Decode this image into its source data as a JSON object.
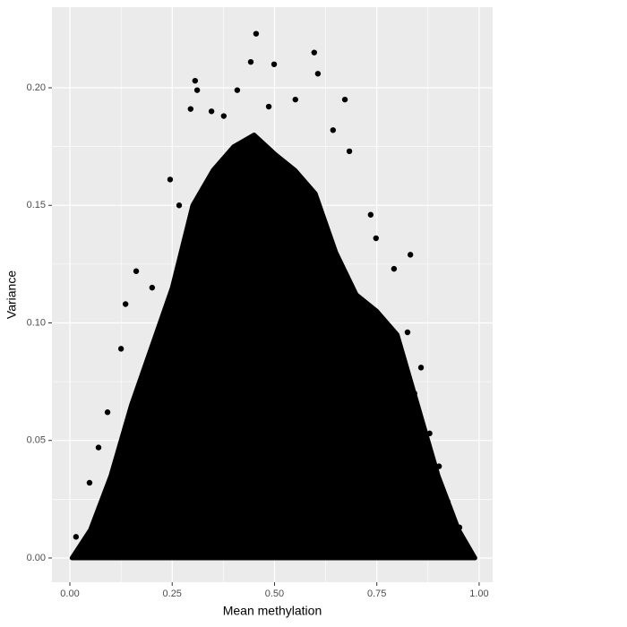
{
  "chart_data": {
    "type": "scatter",
    "x_label": "Mean methylation",
    "y_label": "Variance",
    "xlim": [
      -0.0438,
      1.033
    ],
    "ylim": [
      -0.0103,
      0.2343
    ],
    "xticks": [
      {
        "value": 0,
        "label": "0.00"
      },
      {
        "value": 0.25,
        "label": "0.25"
      },
      {
        "value": 0.5,
        "label": "0.50"
      },
      {
        "value": 0.75,
        "label": "0.75"
      },
      {
        "value": 1,
        "label": "1.00"
      }
    ],
    "yticks": [
      {
        "value": 0,
        "label": "0.00"
      },
      {
        "value": 0.05,
        "label": "0.05"
      },
      {
        "value": 0.1,
        "label": "0.10"
      },
      {
        "value": 0.15,
        "label": "0.15"
      },
      {
        "value": 0.2,
        "label": "0.20"
      }
    ],
    "x_minor_grid": [
      0.125,
      0.375,
      0.625,
      0.875
    ],
    "y_minor_grid": [
      0.025,
      0.075,
      0.125,
      0.175
    ],
    "grid": true,
    "color": "#000000",
    "x": [
      0.455,
      0.597,
      0.442,
      0.499,
      0.306,
      0.311,
      0.606,
      0.672,
      0.346,
      0.295,
      0.735,
      0.832,
      0.162,
      0.136,
      0.858,
      0.879,
      0.923,
      0.952,
      0.092,
      0.048,
      0.015,
      0.683,
      0.643,
      0.245,
      0.201,
      0.792,
      0.376,
      0.551,
      0.409,
      0.486,
      0.267,
      0.748,
      0.825,
      0.842,
      0.125,
      0.07,
      0.902
    ],
    "y": [
      0.223,
      0.215,
      0.211,
      0.21,
      0.203,
      0.199,
      0.206,
      0.195,
      0.19,
      0.191,
      0.146,
      0.129,
      0.122,
      0.108,
      0.081,
      0.053,
      0.024,
      0.013,
      0.062,
      0.032,
      0.009,
      0.173,
      0.182,
      0.161,
      0.115,
      0.123,
      0.188,
      0.195,
      0.199,
      0.192,
      0.15,
      0.136,
      0.096,
      0.07,
      0.089,
      0.047,
      0.039
    ],
    "dense_region": {
      "x": [
        0.005,
        0.05,
        0.1,
        0.15,
        0.2,
        0.25,
        0.3,
        0.35,
        0.4,
        0.45,
        0.5,
        0.55,
        0.6,
        0.65,
        0.7,
        0.75,
        0.8,
        0.85,
        0.9,
        0.95,
        0.99
      ],
      "y": [
        0,
        0.012,
        0.035,
        0.065,
        0.09,
        0.115,
        0.15,
        0.165,
        0.175,
        0.18,
        0.172,
        0.165,
        0.155,
        0.13,
        0.112,
        0.105,
        0.095,
        0.065,
        0.035,
        0.012,
        0
      ]
    }
  }
}
